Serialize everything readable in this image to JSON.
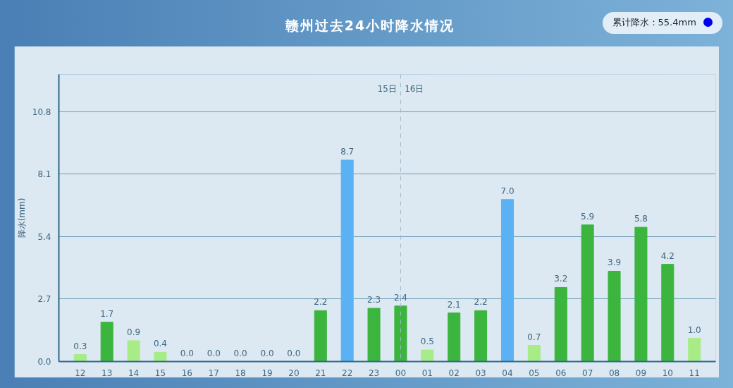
{
  "chart_data": {
    "type": "bar",
    "title": "赣州过去24小时降水情况",
    "ylabel": "降水(mm)",
    "categories": [
      "12",
      "13",
      "14",
      "15",
      "16",
      "17",
      "18",
      "19",
      "20",
      "21",
      "22",
      "23",
      "00",
      "01",
      "02",
      "03",
      "04",
      "05",
      "06",
      "07",
      "08",
      "09",
      "10",
      "11"
    ],
    "values": [
      0.3,
      1.7,
      0.9,
      0.4,
      0.0,
      0.0,
      0.0,
      0.0,
      0.0,
      2.2,
      8.7,
      2.3,
      2.4,
      0.5,
      2.1,
      2.2,
      7.0,
      0.7,
      3.2,
      5.9,
      3.9,
      5.8,
      4.2,
      1.0
    ],
    "colors": [
      "#a8ec88",
      "#3cb53f",
      "#a8ec88",
      "#a8ec88",
      "#ffffff",
      "#ffffff",
      "#ffffff",
      "#ffffff",
      "#ffffff",
      "#3cb53f",
      "#5ab2f4",
      "#3cb53f",
      "#3cb53f",
      "#a8ec88",
      "#3cb53f",
      "#3cb53f",
      "#5ab2f4",
      "#a8ec88",
      "#3cb53f",
      "#3cb53f",
      "#3cb53f",
      "#3cb53f",
      "#3cb53f",
      "#a8ec88"
    ],
    "value_labels": [
      "0.3",
      "1.7",
      "0.9",
      "0.4",
      "0.0",
      "0.0",
      "0.0",
      "0.0",
      "0.0",
      "2.2",
      "8.7",
      "2.3",
      "2.4",
      "0.5",
      "2.1",
      "2.2",
      "7.0",
      "0.7",
      "3.2",
      "5.9",
      "3.9",
      "5.8",
      "4.2",
      "1.0"
    ],
    "ylim": [
      0,
      12.4
    ],
    "yticks": [
      {
        "value": 0,
        "label": "0.0"
      },
      2.7,
      5.4,
      8.1,
      10.8
    ],
    "grid": "y",
    "ref_lines": [
      {
        "axis": "x",
        "value": "00",
        "line_style": "dashed",
        "color": "#9fb8c8"
      }
    ],
    "annotations": [
      "累计降水：55.4mm",
      "15日",
      "16日"
    ]
  }
}
